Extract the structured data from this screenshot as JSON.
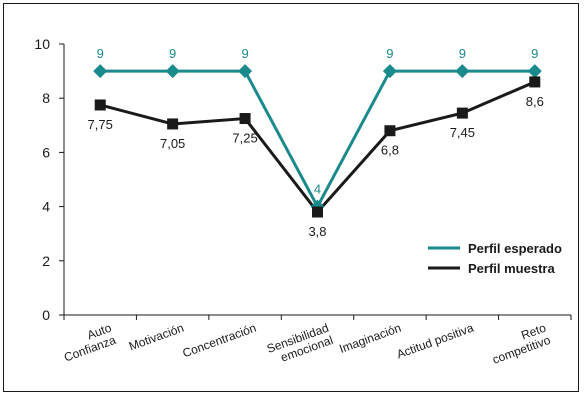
{
  "chart_data": {
    "type": "line",
    "categories": [
      [
        "Auto",
        "Confianza"
      ],
      [
        "Motivación"
      ],
      [
        "Concentración"
      ],
      [
        "Sensibilidad",
        "emocional"
      ],
      [
        "Imaginación"
      ],
      [
        "Actitud positiva"
      ],
      [
        "Reto",
        "competitivo"
      ]
    ],
    "yticks": [
      "0",
      "2",
      "4",
      "6",
      "8",
      "10"
    ],
    "ylim": [
      0,
      10
    ],
    "grid": false,
    "legend_position": "right",
    "series": [
      {
        "name": "Perfil esperado",
        "color": "#1a8a8c",
        "marker": "diamond",
        "values": [
          9,
          9,
          9,
          4,
          9,
          9,
          9
        ],
        "labels": [
          "9",
          "9",
          "9",
          "4",
          "9",
          "9",
          "9"
        ]
      },
      {
        "name": "Perfil muestra",
        "color": "#1a1a1a",
        "marker": "square",
        "values": [
          7.75,
          7.05,
          7.25,
          3.8,
          6.8,
          7.45,
          8.6
        ],
        "labels": [
          "7,75",
          "7,05",
          "7,25",
          "3,8",
          "6,8",
          "7,45",
          "8,6"
        ]
      }
    ]
  }
}
